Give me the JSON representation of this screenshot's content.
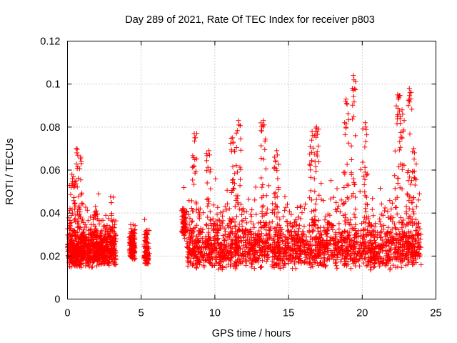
{
  "chart_data": {
    "type": "scatter",
    "title": "Day 289 of 2021, Rate Of TEC Index for receiver p803",
    "xlabel": "GPS time / hours",
    "ylabel": "ROTI / TECUs",
    "xlim": [
      0,
      25
    ],
    "ylim": [
      0,
      0.12
    ],
    "xticks": [
      "0",
      "5",
      "10",
      "15",
      "20",
      "25"
    ],
    "yticks": [
      "0",
      "0.02",
      "0.04",
      "0.06",
      "0.08",
      "0.1",
      "0.12"
    ],
    "xtick_values": [
      0,
      5,
      10,
      15,
      20,
      25
    ],
    "ytick_values": [
      0,
      0.02,
      0.04,
      0.06,
      0.08,
      0.1,
      0.12
    ],
    "grid": true,
    "marker": "+",
    "color": "#ff0000",
    "series": [
      {
        "name": "ROTI",
        "segments": [
          {
            "t_start": 0.0,
            "t_end": 3.3,
            "base": 0.018,
            "spread": 0.012,
            "peaks": [
              [
                0.6,
                0.07
              ],
              [
                0.9,
                0.066
              ],
              [
                0.3,
                0.058
              ],
              [
                1.9,
                0.043
              ]
            ]
          },
          {
            "t_start": 4.2,
            "t_end": 4.6,
            "base": 0.02,
            "spread": 0.01,
            "peaks": [
              [
                4.4,
                0.031
              ]
            ]
          },
          {
            "t_start": 5.2,
            "t_end": 5.5,
            "base": 0.018,
            "spread": 0.008,
            "peaks": [
              [
                5.4,
                0.032
              ]
            ]
          },
          {
            "t_start": 7.8,
            "t_end": 8.0,
            "base": 0.03,
            "spread": 0.01,
            "peaks": [
              [
                7.9,
                0.042
              ]
            ]
          },
          {
            "t_start": 8.1,
            "t_end": 24.0,
            "base": 0.018,
            "spread": 0.016,
            "peaks": [
              [
                8.6,
                0.077
              ],
              [
                9.6,
                0.069
              ],
              [
                11.2,
                0.075
              ],
              [
                11.6,
                0.083
              ],
              [
                13.3,
                0.083
              ],
              [
                14.2,
                0.069
              ],
              [
                16.6,
                0.078
              ],
              [
                16.9,
                0.08
              ],
              [
                18.9,
                0.093
              ],
              [
                19.4,
                0.104
              ],
              [
                20.2,
                0.082
              ],
              [
                22.4,
                0.095
              ],
              [
                22.7,
                0.088
              ],
              [
                23.2,
                0.098
              ],
              [
                23.5,
                0.07
              ]
            ]
          }
        ]
      }
    ]
  }
}
